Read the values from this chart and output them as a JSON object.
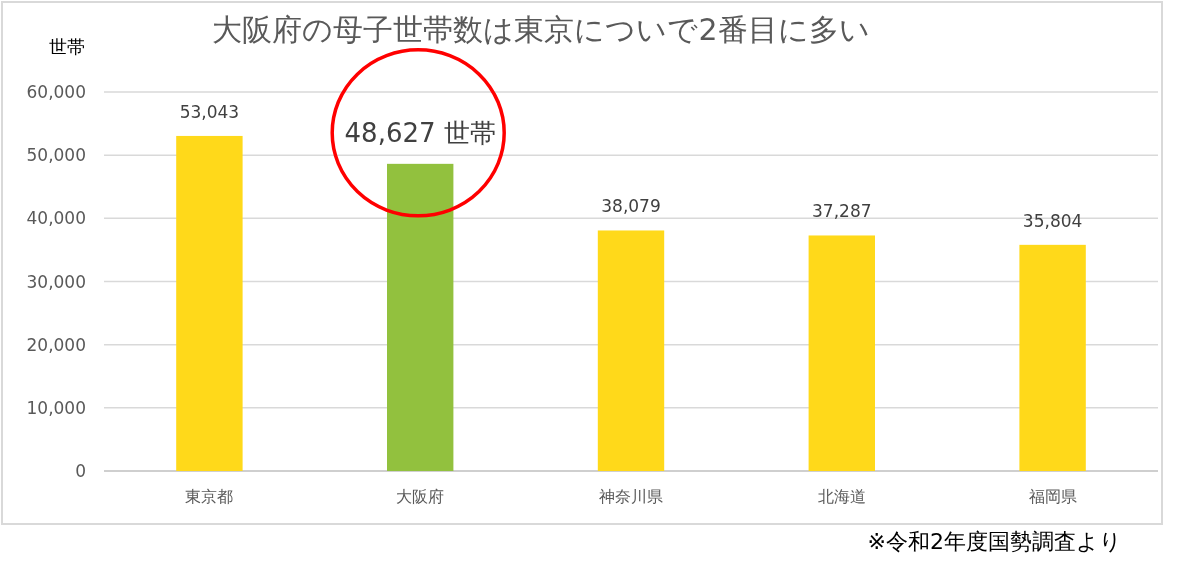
{
  "chart_data": {
    "type": "bar",
    "title": "大阪府の母子世帯数は東京についで2番目に多い",
    "ylabel": "世帯",
    "categories": [
      "東京都",
      "大阪府",
      "神奈川県",
      "北海道",
      "福岡県"
    ],
    "values": [
      53043,
      48627,
      38079,
      37287,
      35804
    ],
    "colors": [
      "#ffd91a",
      "#92c13e",
      "#ffd91a",
      "#ffd91a",
      "#ffd91a"
    ],
    "value_labels": [
      "53,043",
      "48,627 世帯",
      "38,079",
      "37,287",
      "35,804"
    ],
    "ylim": [
      0,
      60000
    ],
    "yticks": [
      0,
      {
        "value": 10000,
        "label": "10,000"
      },
      {
        "value": 20000,
        "label": "20,000"
      },
      {
        "value": 30000,
        "label": "30,000"
      },
      {
        "value": 40000,
        "label": "40,000"
      },
      {
        "value": 50000,
        "label": "50,000"
      },
      {
        "value": 60000,
        "label": "60,000"
      }
    ],
    "grid": "y",
    "annotations": [
      "※令和2年度国勢調査より"
    ]
  }
}
